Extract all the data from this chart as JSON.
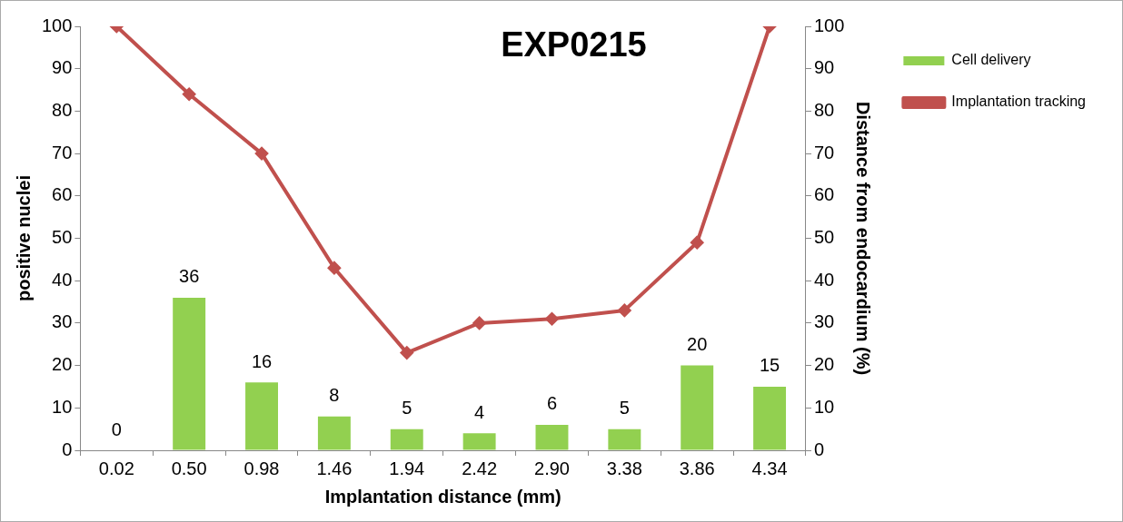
{
  "chart_data": {
    "type": "bar",
    "title": "EXP0215",
    "xlabel": "Implantation distance (mm)",
    "ylabel": "positive nuclei",
    "y2label": "Distance from endocardium (%)",
    "categories": [
      "0.02",
      "0.50",
      "0.98",
      "1.46",
      "1.94",
      "2.42",
      "2.90",
      "3.38",
      "3.86",
      "4.34"
    ],
    "series": [
      {
        "name": "Cell delivery",
        "type": "bar",
        "color": "#92d050",
        "values": [
          0,
          36,
          16,
          8,
          5,
          4,
          6,
          5,
          20,
          15
        ],
        "value_labels": [
          "0",
          "36",
          "16",
          "8",
          "5",
          "4",
          "6",
          "5",
          "20",
          "15"
        ]
      },
      {
        "name": "Implantation tracking",
        "type": "line",
        "axis": "y2",
        "color": "#c0504d",
        "marker": "diamond",
        "values": [
          100,
          84,
          70,
          43,
          23,
          30,
          31,
          33,
          49,
          100
        ]
      }
    ],
    "ylim": [
      0,
      100
    ],
    "yticks": [
      0,
      10,
      20,
      30,
      40,
      50,
      60,
      70,
      80,
      90,
      100
    ],
    "y2lim": [
      0,
      100
    ],
    "y2ticks": [
      0,
      10,
      20,
      30,
      40,
      50,
      60,
      70,
      80,
      90,
      100
    ],
    "grid": false,
    "legend": "top right"
  }
}
